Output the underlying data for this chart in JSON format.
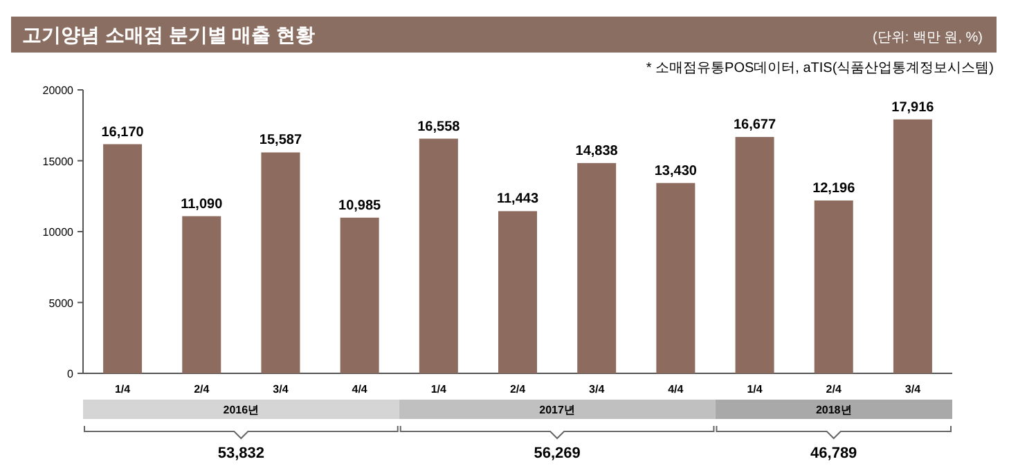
{
  "chart_data": {
    "type": "bar",
    "title": "고기양념 소매점 분기별 매출 현황",
    "annotations": [
      "(단위: 백만 원, %)",
      "* 소매점유통POS데이터, aTIS(식품산업통계정보시스템)",
      "2016년",
      "2017년",
      "2018년",
      "53,832",
      "56,269",
      "46,789"
    ],
    "categories": [
      "1/4",
      "2/4",
      "3/4",
      "4/4",
      "1/4",
      "2/4",
      "3/4",
      "4/4",
      "1/4",
      "2/4",
      "3/4"
    ],
    "values": [
      16170,
      11090,
      15587,
      10985,
      16558,
      11443,
      14838,
      13430,
      16677,
      12196,
      17916
    ],
    "color": "#8d6b5e",
    "ylim": [
      0,
      20000
    ],
    "yticks": [
      0,
      5000,
      10000,
      15000,
      20000
    ],
    "value_labels": [
      "16,170",
      "11,090",
      "15,587",
      "10,985",
      "16,558",
      "11,443",
      "14,838",
      "13,430",
      "16,677",
      "12,196",
      "17,916"
    ],
    "grid": false
  }
}
